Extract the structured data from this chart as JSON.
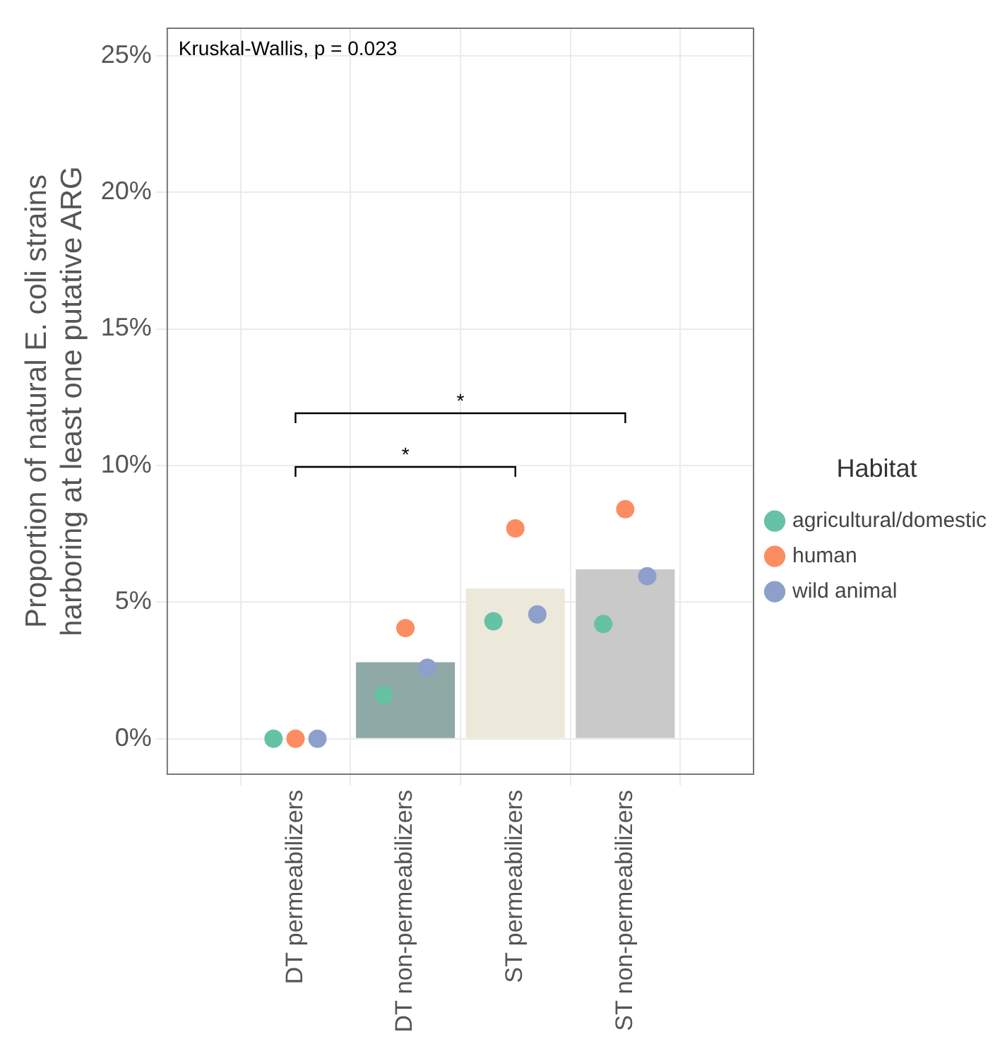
{
  "chart_data": {
    "type": "bar",
    "ylabel": "Proportion of natural E. coli strains harboring at least one putative ARG",
    "legend_title": "Habitat",
    "categories": [
      "DT permeabilizers",
      "DT non-permeabilizers",
      "ST permeabilizers",
      "ST non-permeabilizers"
    ],
    "values": [
      0,
      2.8,
      5.5,
      6.2
    ],
    "colors": [
      "#8fa9a6",
      "#8fa9a6",
      "#ece9db",
      "#c8c9c8"
    ],
    "series": [
      {
        "type": "scatter",
        "name": "agricultural/domestic",
        "color": "#66c2a5",
        "values": [
          0,
          1.6,
          4.3,
          4.2
        ]
      },
      {
        "type": "scatter",
        "name": "human",
        "color": "#fc8d62",
        "values": [
          0,
          4.05,
          7.7,
          8.4
        ]
      },
      {
        "type": "scatter",
        "name": "wild animal",
        "color": "#8da0cb",
        "values": [
          0,
          2.6,
          4.55,
          5.95
        ]
      }
    ],
    "ylim": [
      -1.3,
      26
    ],
    "yticks": [
      {
        "value": 0,
        "label": "0%"
      },
      {
        "value": 5,
        "label": "5%"
      },
      {
        "value": 10,
        "label": "10%"
      },
      {
        "value": 15,
        "label": "15%"
      },
      {
        "value": 20,
        "label": "20%"
      },
      {
        "value": 25,
        "label": "25%"
      }
    ],
    "grid": true,
    "legend": "right",
    "marker": "circle",
    "annotations": [
      "Kruskal-Wallis, p = 0.023",
      "*",
      "*"
    ]
  }
}
